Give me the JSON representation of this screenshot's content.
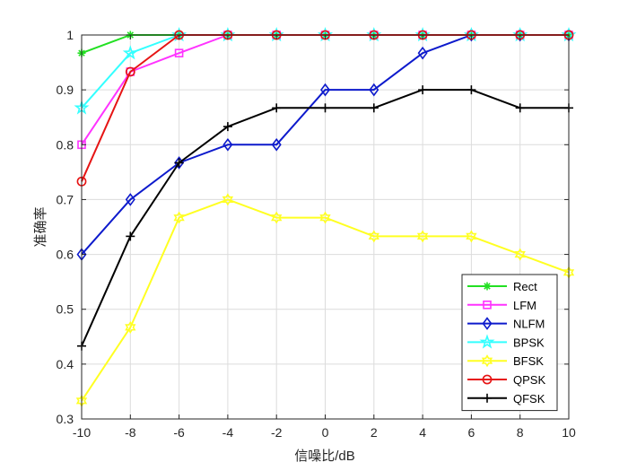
{
  "chart_data": {
    "type": "line",
    "xlabel": "信噪比/dB",
    "ylabel": "准确率",
    "xlim": [
      -10,
      10
    ],
    "ylim": [
      0.3,
      1
    ],
    "x": [
      -10,
      -8,
      -6,
      -4,
      -2,
      0,
      2,
      4,
      6,
      8,
      10
    ],
    "xticks": [
      "-10",
      "-8",
      "-6",
      "-4",
      "-2",
      "0",
      "2",
      "4",
      "6",
      "8",
      "10"
    ],
    "yticks": [
      "0.3",
      "0.4",
      "0.5",
      "0.6",
      "0.7",
      "0.8",
      "0.9",
      "1"
    ],
    "grid": true,
    "legend_position": "bottom-right",
    "series": [
      {
        "name": "Rect",
        "color": "#22e022",
        "marker": "asterisk",
        "values": [
          0.967,
          1,
          1,
          1,
          1,
          1,
          1,
          1,
          1,
          1,
          1
        ]
      },
      {
        "name": "LFM",
        "color": "#ff33ff",
        "marker": "square",
        "values": [
          0.8,
          0.933,
          0.967,
          1,
          1,
          1,
          1,
          1,
          1,
          1,
          1
        ]
      },
      {
        "name": "NLFM",
        "color": "#0d1acc",
        "marker": "diamond",
        "values": [
          0.6,
          0.7,
          0.767,
          0.8,
          0.8,
          0.9,
          0.9,
          0.967,
          1,
          1,
          1
        ]
      },
      {
        "name": "BPSK",
        "color": "#33ffff",
        "marker": "pentagram",
        "values": [
          0.867,
          0.967,
          1,
          1,
          1,
          1,
          1,
          1,
          1,
          1,
          1
        ]
      },
      {
        "name": "BFSK",
        "color": "#ffff22",
        "marker": "hexagram",
        "values": [
          0.333,
          0.467,
          0.667,
          0.7,
          0.667,
          0.667,
          0.633,
          0.633,
          0.633,
          0.6,
          0.567
        ]
      },
      {
        "name": "QPSK",
        "color": "#e61414",
        "marker": "circle",
        "values": [
          0.733,
          0.933,
          1,
          1,
          1,
          1,
          1,
          1,
          1,
          1,
          1
        ]
      },
      {
        "name": "QFSK",
        "color": "#000000",
        "marker": "plus",
        "values": [
          0.433,
          0.633,
          0.767,
          0.833,
          0.867,
          0.867,
          0.867,
          0.9,
          0.9,
          0.867,
          0.867
        ]
      }
    ]
  }
}
